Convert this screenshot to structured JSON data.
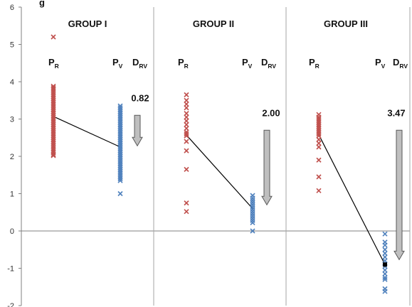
{
  "header_text": "g",
  "chart_data": {
    "type": "scatter",
    "ylim": [
      -2,
      6
    ],
    "yticks": [
      -2,
      -1,
      0,
      1,
      2,
      3,
      4,
      5,
      6
    ],
    "grid": false,
    "colors": {
      "pr": "#c0504d",
      "pv": "#4f81bd",
      "arrow": "#bfbfbf",
      "line": "#000000"
    },
    "marker": "x",
    "groups": [
      {
        "title": "GROUP I",
        "pr_label": {
          "main": "P",
          "sub": "R"
        },
        "pv_label": {
          "main": "P",
          "sub": "V"
        },
        "drv_label": {
          "main": "D",
          "sub": "RV"
        },
        "drv_value": "0.82",
        "drv_arrow": {
          "from": 3.1,
          "to": 2.28
        },
        "mean_pr": 3.07,
        "mean_pv": 2.25,
        "pr_values": [
          5.2,
          3.88,
          3.84,
          3.8,
          3.75,
          3.7,
          3.65,
          3.6,
          3.55,
          3.5,
          3.45,
          3.4,
          3.35,
          3.3,
          3.25,
          3.2,
          3.15,
          3.1,
          3.05,
          3.0,
          2.95,
          2.9,
          2.85,
          2.8,
          2.75,
          2.7,
          2.65,
          2.6,
          2.55,
          2.5,
          2.45,
          2.4,
          2.35,
          2.3,
          2.25,
          2.2,
          2.15,
          2.1,
          2.05,
          2.02
        ],
        "pv_values": [
          3.35,
          3.3,
          3.25,
          3.2,
          3.15,
          3.1,
          3.05,
          3.0,
          2.95,
          2.9,
          2.85,
          2.8,
          2.75,
          2.7,
          2.65,
          2.6,
          2.55,
          2.5,
          2.45,
          2.4,
          2.35,
          2.3,
          2.25,
          2.2,
          2.15,
          2.1,
          2.05,
          2.0,
          1.95,
          1.9,
          1.85,
          1.8,
          1.75,
          1.7,
          1.65,
          1.6,
          1.55,
          1.5,
          1.45,
          1.4,
          1.35,
          1.0
        ]
      },
      {
        "title": "GROUP II",
        "pr_label": {
          "main": "P",
          "sub": "R"
        },
        "pv_label": {
          "main": "P",
          "sub": "V"
        },
        "drv_label": {
          "main": "D",
          "sub": "RV"
        },
        "drv_value": "2.00",
        "drv_arrow": {
          "from": 2.7,
          "to": 0.7
        },
        "mean_pr": 2.57,
        "mean_pv": 0.6,
        "pr_values": [
          3.65,
          3.5,
          3.4,
          3.3,
          3.15,
          3.05,
          2.95,
          2.85,
          2.75,
          2.65,
          2.6,
          2.55,
          2.4,
          2.15,
          1.65,
          0.75,
          0.52
        ],
        "pv_values": [
          0.95,
          0.88,
          0.82,
          0.76,
          0.7,
          0.64,
          0.58,
          0.52,
          0.46,
          0.4,
          0.34,
          0.28,
          0.22,
          0.0
        ]
      },
      {
        "title": "GROUP III",
        "pr_label": {
          "main": "P",
          "sub": "R"
        },
        "pv_label": {
          "main": "P",
          "sub": "V"
        },
        "drv_label": {
          "main": "D",
          "sub": "RV"
        },
        "drv_value": "3.47",
        "drv_arrow": {
          "from": 2.7,
          "to": -0.77
        },
        "mean_pr": 2.58,
        "mean_pv": -0.9,
        "pr_values": [
          3.12,
          3.05,
          3.0,
          2.95,
          2.9,
          2.85,
          2.8,
          2.75,
          2.7,
          2.65,
          2.6,
          2.55,
          2.45,
          2.35,
          2.25,
          1.9,
          1.45,
          1.08
        ],
        "pv_values": [
          -0.08,
          -0.3,
          -0.38,
          -0.5,
          -0.6,
          -0.7,
          -0.8,
          -0.88,
          -0.95,
          -1.05,
          -1.15,
          -1.25,
          -1.3,
          -1.55,
          -1.62
        ]
      }
    ]
  }
}
